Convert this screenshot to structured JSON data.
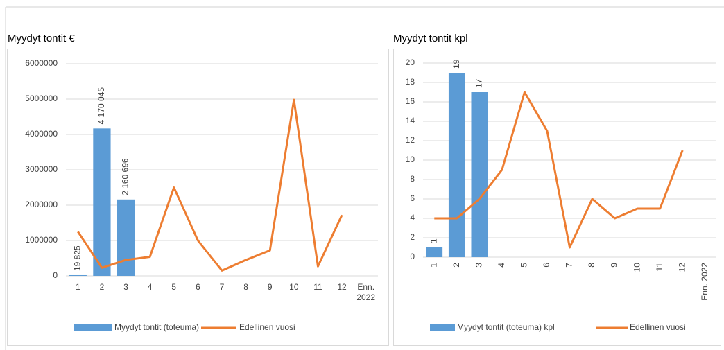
{
  "chart_data": [
    {
      "type": "bar",
      "title": "Myydyt tontit €",
      "categories": [
        "1",
        "2",
        "3",
        "4",
        "5",
        "6",
        "7",
        "8",
        "9",
        "10",
        "11",
        "12",
        "Enn. 2022"
      ],
      "series": [
        {
          "name": "Myydyt tontit (toteuma)",
          "type": "bar",
          "color": "#5b9bd5",
          "values": [
            19825,
            4170045,
            2160696,
            null,
            null,
            null,
            null,
            null,
            null,
            null,
            null,
            null,
            null
          ],
          "value_labels": [
            "19 825",
            "4 170 045",
            "2 160 696",
            null,
            null,
            null,
            null,
            null,
            null,
            null,
            null,
            null,
            null
          ]
        },
        {
          "name": "Edellinen vuosi",
          "type": "line",
          "color": "#ed7d31",
          "values": [
            1250000,
            230000,
            450000,
            540000,
            2500000,
            1000000,
            150000,
            450000,
            720000,
            4980000,
            270000,
            1720000,
            null
          ]
        }
      ],
      "ylim": [
        0,
        6000000
      ],
      "yticks": [
        0,
        1000000,
        2000000,
        3000000,
        4000000,
        5000000,
        6000000
      ],
      "grid": true,
      "legend": "bottom"
    },
    {
      "type": "bar",
      "title": "Myydyt tontit kpl",
      "categories": [
        "1",
        "2",
        "3",
        "4",
        "5",
        "6",
        "7",
        "8",
        "9",
        "10",
        "11",
        "12",
        "Enn. 2022"
      ],
      "series": [
        {
          "name": "Myydyt tontit (toteuma) kpl",
          "type": "bar",
          "color": "#5b9bd5",
          "values": [
            1,
            19,
            17,
            null,
            null,
            null,
            null,
            null,
            null,
            null,
            null,
            null,
            null
          ]
        },
        {
          "name": "Edellinen vuosi",
          "type": "line",
          "color": "#ed7d31",
          "values": [
            4,
            4,
            6,
            9,
            17,
            13,
            1,
            6,
            4,
            5,
            5,
            11,
            null
          ]
        }
      ],
      "ylim": [
        0,
        20
      ],
      "yticks": [
        0,
        2,
        4,
        6,
        8,
        10,
        12,
        14,
        16,
        18,
        20
      ],
      "grid": true,
      "legend": "bottom"
    }
  ]
}
